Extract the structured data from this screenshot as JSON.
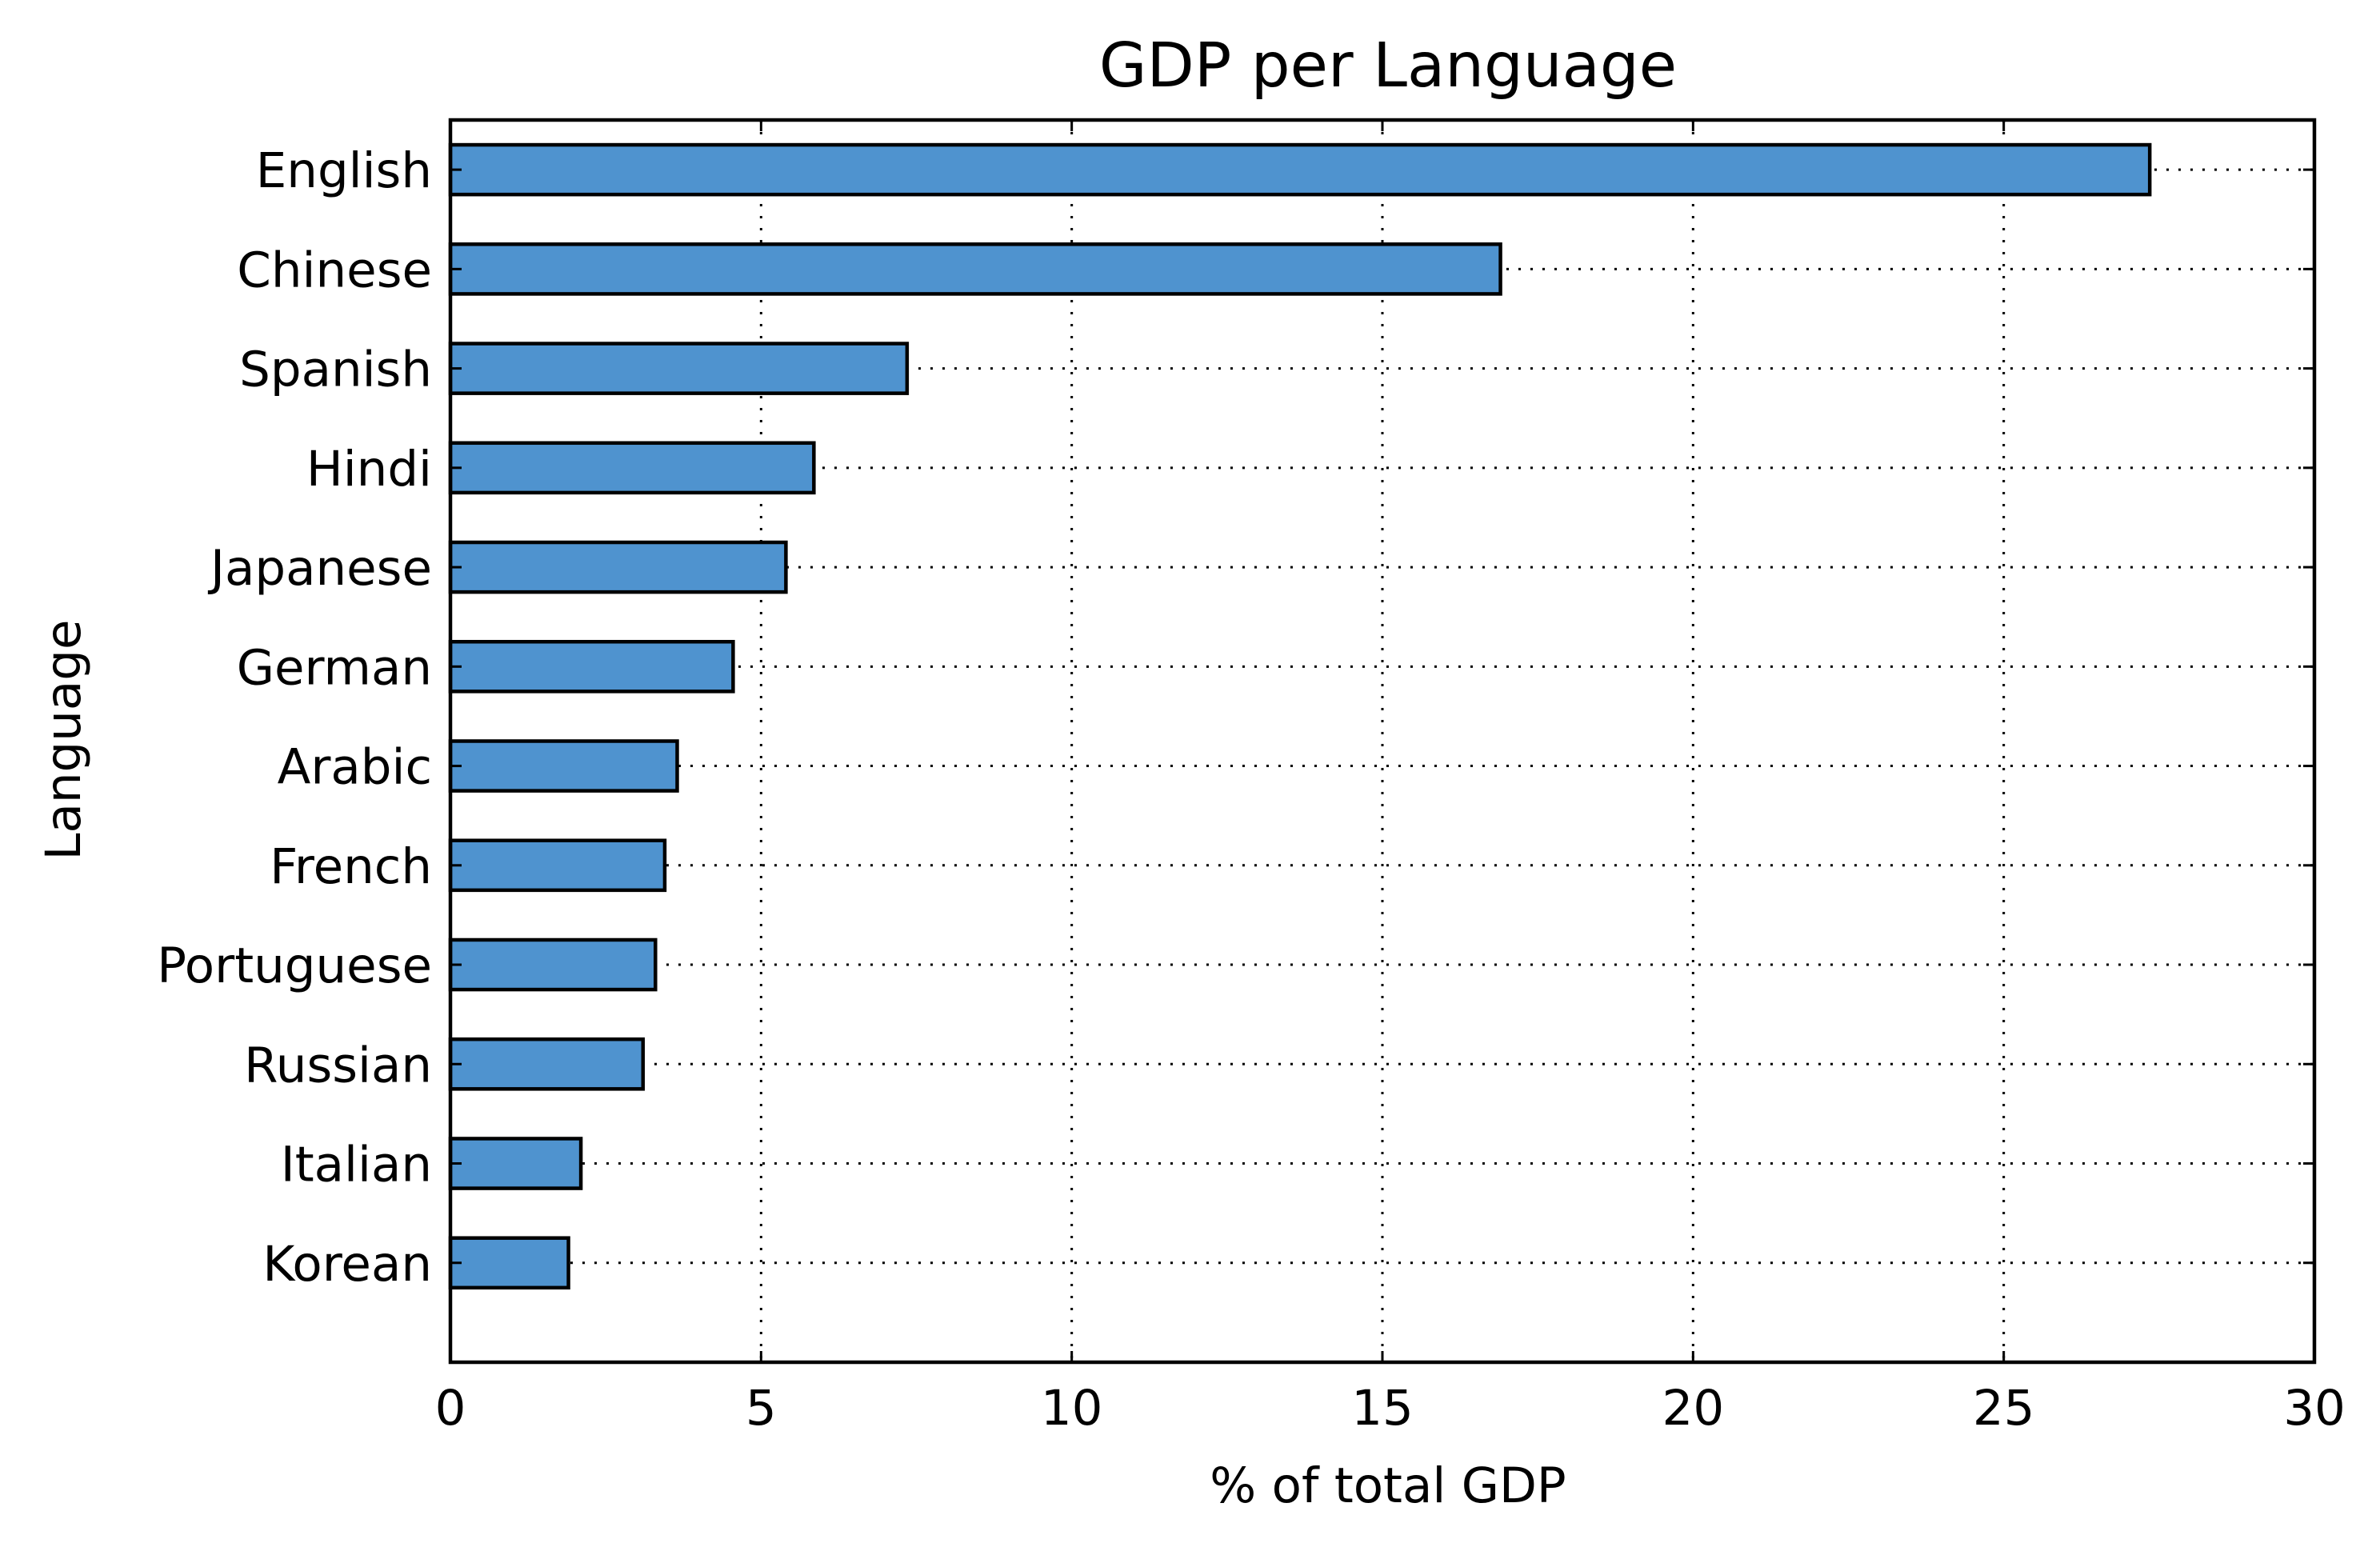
{
  "chart_data": {
    "type": "bar",
    "orientation": "horizontal",
    "title": "GDP per Language",
    "xlabel": "% of total GDP",
    "ylabel": "Language",
    "categories": [
      "English",
      "Chinese",
      "Spanish",
      "Hindi",
      "Japanese",
      "German",
      "Arabic",
      "French",
      "Portuguese",
      "Russian",
      "Italian",
      "Korean"
    ],
    "values": [
      27.35,
      16.9,
      7.35,
      5.85,
      5.4,
      4.55,
      3.65,
      3.45,
      3.3,
      3.1,
      2.1,
      1.9
    ],
    "xlim": [
      0,
      30
    ],
    "xticks": [
      "0",
      "5",
      "10",
      "15",
      "20",
      "25",
      "30"
    ],
    "grid": true,
    "legend": "none",
    "colors": {
      "bar": "#4f93cf",
      "bar_edge": "#000000",
      "grid": "#000000"
    }
  }
}
